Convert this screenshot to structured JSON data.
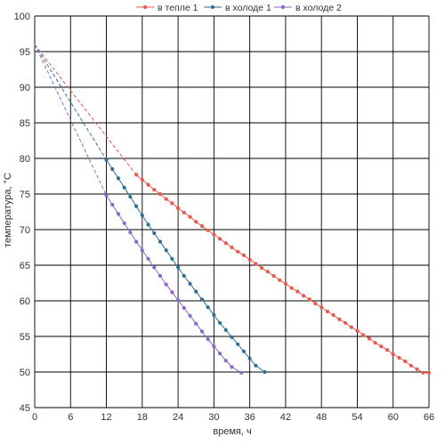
{
  "chart_data": {
    "type": "line",
    "title": "",
    "xlabel": "время, ч",
    "ylabel": "температура, °С",
    "xlim": [
      0,
      66
    ],
    "ylim": [
      45,
      100
    ],
    "xticks": [
      0,
      6,
      12,
      18,
      24,
      30,
      36,
      42,
      48,
      54,
      60,
      66
    ],
    "yticks": [
      45,
      50,
      55,
      60,
      65,
      70,
      75,
      80,
      85,
      90,
      95,
      100
    ],
    "grid": true,
    "legend_position": "top",
    "series": [
      {
        "name": "в тепле 1",
        "color": "#e8594a",
        "x": [
          0,
          17
        ],
        "y": [
          96,
          77.7
        ],
        "dashed_until_x": 17,
        "markers": {
          "x_start": 17,
          "x_end": 66,
          "step": 1,
          "y": [
            77.7,
            77.0,
            76.3,
            75.6,
            75.0,
            74.3,
            73.7,
            73.0,
            72.4,
            71.8,
            71.1,
            70.5,
            69.9,
            69.3,
            68.7,
            68.1,
            67.5,
            66.9,
            66.4,
            65.8,
            65.2,
            64.6,
            64.1,
            63.5,
            62.9,
            62.4,
            61.8,
            61.3,
            60.7,
            60.2,
            59.6,
            59.1,
            58.5,
            58.0,
            57.4,
            56.9,
            56.3,
            55.8,
            55.2,
            54.7,
            54.1,
            53.6,
            53.1,
            52.5,
            52.0,
            51.5,
            50.9,
            50.4,
            49.9,
            49.9
          ]
        }
      },
      {
        "name": "в холоде 1",
        "color": "#2e6e94",
        "x": [
          0,
          12
        ],
        "y": [
          96,
          79.8
        ],
        "dashed_until_x": 12,
        "markers": {
          "x_start": 12,
          "x_end": 38.5,
          "step": 1,
          "y": [
            79.8,
            78.5,
            77.2,
            75.9,
            74.6,
            73.3,
            72.0,
            70.7,
            69.5,
            68.3,
            67.1,
            65.9,
            64.7,
            63.5,
            62.4,
            61.3,
            60.2,
            59.1,
            58.0,
            56.9,
            55.9,
            54.9,
            53.9,
            52.9,
            51.9,
            50.9,
            50.0
          ]
        }
      },
      {
        "name": "в холоде 2",
        "color": "#8a67cc",
        "x": [
          0,
          12
        ],
        "y": [
          96,
          74.8
        ],
        "dashed_until_x": 12,
        "markers": {
          "x_start": 12,
          "x_end": 34.6,
          "step": 1,
          "y": [
            74.8,
            73.5,
            72.2,
            70.9,
            69.6,
            68.3,
            67.1,
            65.9,
            64.7,
            63.5,
            62.3,
            61.2,
            60.1,
            59.0,
            57.9,
            56.8,
            55.7,
            54.6,
            53.6,
            52.6,
            51.6,
            50.7,
            49.9
          ]
        }
      }
    ]
  }
}
